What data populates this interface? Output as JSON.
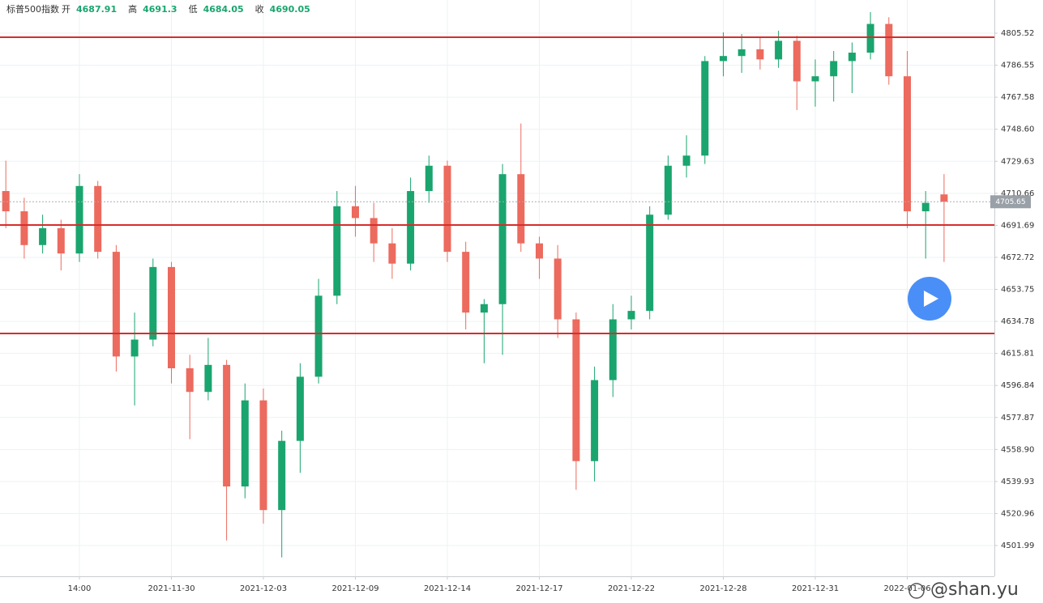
{
  "chart_data": {
    "type": "candlestick",
    "title": "标普500指数",
    "ohlc_legend": [
      {
        "label": "开",
        "value": 4687.91
      },
      {
        "label": "高",
        "value": 4691.3
      },
      {
        "label": "低",
        "value": 4684.05
      },
      {
        "label": "收",
        "value": 4690.05
      }
    ],
    "watermark": "@shan.yu",
    "up_color": "#1aa56e",
    "down_color": "#ec6a5e",
    "line_color": "#d62d2d",
    "grid": true,
    "categories": [
      null,
      null,
      null,
      null,
      "14:00",
      null,
      null,
      null,
      null,
      "2021-11-30",
      null,
      null,
      null,
      null,
      "2021-12-03",
      null,
      null,
      null,
      null,
      "2021-12-09",
      null,
      null,
      null,
      null,
      "2021-12-14",
      null,
      null,
      null,
      null,
      "2021-12-17",
      null,
      null,
      null,
      null,
      "2021-12-22",
      null,
      null,
      null,
      null,
      "2021-12-28",
      null,
      null,
      null,
      null,
      "2021-12-31",
      null,
      null,
      null,
      null,
      "2022-01-06",
      null,
      null
    ],
    "open": [
      4712,
      4700,
      4680,
      4690,
      4675,
      4715,
      4676,
      4614,
      4624,
      4667,
      4607,
      4593,
      4609,
      4537,
      4588,
      4523,
      4564,
      4602,
      4650,
      4703,
      4696,
      4681,
      4669,
      4712,
      4727,
      4676,
      4640,
      4645,
      4722,
      4681,
      4672,
      4636,
      4552,
      4600,
      4636,
      4641,
      4698,
      4727,
      4733,
      4789,
      4792,
      4796,
      4790,
      4801,
      4777,
      4780,
      4789,
      4794,
      4811,
      4780,
      4700,
      4710
    ],
    "high": [
      4730,
      4708,
      4698,
      4695,
      4722,
      4718,
      4680,
      4640,
      4672,
      4670,
      4615,
      4625,
      4612,
      4598,
      4595,
      4570,
      4610,
      4660,
      4712,
      4715,
      4705,
      4690,
      4720,
      4733,
      4730,
      4682,
      4648,
      4728,
      4752,
      4685,
      4680,
      4640,
      4608,
      4645,
      4650,
      4703,
      4733,
      4745,
      4792,
      4806,
      4805,
      4803,
      4807,
      4804,
      4790,
      4795,
      4800,
      4818,
      4815,
      4795,
      4712,
      4722
    ],
    "low": [
      4690,
      4672,
      4675,
      4665,
      4670,
      4672,
      4605,
      4585,
      4620,
      4598,
      4565,
      4588,
      4505,
      4530,
      4515,
      4495,
      4545,
      4598,
      4645,
      4685,
      4670,
      4660,
      4665,
      4705,
      4670,
      4630,
      4610,
      4615,
      4676,
      4660,
      4625,
      4535,
      4540,
      4590,
      4630,
      4636,
      4695,
      4720,
      4728,
      4780,
      4782,
      4784,
      4785,
      4760,
      4762,
      4765,
      4770,
      4790,
      4775,
      4690,
      4672,
      4670
    ],
    "close": [
      4700,
      4680,
      4690,
      4675,
      4715,
      4676,
      4614,
      4624,
      4667,
      4607,
      4593,
      4609,
      4537,
      4588,
      4523,
      4564,
      4602,
      4650,
      4703,
      4696,
      4681,
      4669,
      4712,
      4727,
      4676,
      4640,
      4645,
      4722,
      4681,
      4672,
      4636,
      4552,
      4600,
      4636,
      4641,
      4698,
      4727,
      4733,
      4789,
      4792,
      4796,
      4790,
      4801,
      4777,
      4780,
      4789,
      4794,
      4811,
      4780,
      4700,
      4705,
      4705.65
    ],
    "hlines": [
      4803.1,
      4691.9,
      4627.6
    ],
    "last_price": 4705.65,
    "ylim": [
      4483.77,
      4825.18
    ],
    "yticks": [
      {
        "value": 4501.99,
        "label": "4501.99"
      },
      {
        "value": 4520.96,
        "label": "4520.96"
      },
      {
        "value": 4539.93,
        "label": "4539.93"
      },
      {
        "value": 4558.9,
        "label": "4558.90"
      },
      {
        "value": 4577.87,
        "label": "4577.87"
      },
      {
        "value": 4596.84,
        "label": "4596.84"
      },
      {
        "value": 4615.81,
        "label": "4615.81"
      },
      {
        "value": 4634.78,
        "label": "4634.78"
      },
      {
        "value": 4653.75,
        "label": "4653.75"
      },
      {
        "value": 4672.72,
        "label": "4672.72"
      },
      {
        "value": 4691.69,
        "label": "4691.69"
      },
      {
        "value": 4710.66,
        "label": "4710.66"
      },
      {
        "value": 4729.63,
        "label": "4729.63"
      },
      {
        "value": 4748.6,
        "label": "4748.60"
      },
      {
        "value": 4767.58,
        "label": "4767.58"
      },
      {
        "value": 4786.55,
        "label": "4786.55"
      },
      {
        "value": 4805.52,
        "label": "4805.52"
      }
    ]
  }
}
